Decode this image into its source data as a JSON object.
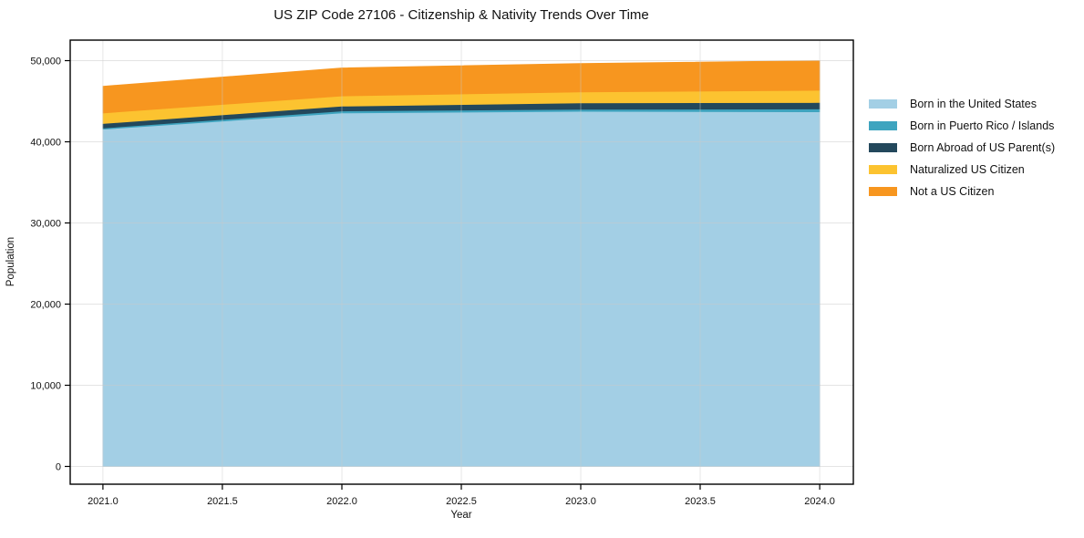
{
  "chart_data": {
    "type": "area",
    "stacked": true,
    "title": "US ZIP Code 27106 - Citizenship & Nativity Trends Over Time",
    "xlabel": "Year",
    "ylabel": "Population",
    "x": [
      2021,
      2022,
      2023,
      2024
    ],
    "series": [
      {
        "name": "Born in the United States",
        "color": "#a3cfe5",
        "values": [
          41550,
          43550,
          43750,
          43700
        ]
      },
      {
        "name": "Born in Puerto Rico / Islands",
        "color": "#3ea4bf",
        "values": [
          150,
          250,
          250,
          350
        ]
      },
      {
        "name": "Born Abroad of US Parent(s)",
        "color": "#23485c",
        "values": [
          550,
          600,
          800,
          800
        ]
      },
      {
        "name": "Naturalized US Citizen",
        "color": "#fcc330",
        "values": [
          1300,
          1250,
          1350,
          1500
        ]
      },
      {
        "name": "Not a US Citizen",
        "color": "#f7961f",
        "values": [
          3300,
          3450,
          3500,
          3650
        ]
      }
    ],
    "totals": [
      46850,
      49100,
      49650,
      50000
    ],
    "x_ticks": {
      "values": [
        2021.0,
        2021.5,
        2022.0,
        2022.5,
        2023.0,
        2023.5,
        2024.0
      ],
      "labels": [
        "2021.0",
        "2021.5",
        "2022.0",
        "2022.5",
        "2023.0",
        "2023.5",
        "2024.0"
      ]
    },
    "y_ticks": {
      "values": [
        0,
        10000,
        20000,
        30000,
        40000,
        50000
      ],
      "labels": [
        "0",
        "10,000",
        "20,000",
        "30,000",
        "40,000",
        "50,000"
      ]
    },
    "xlim": [
      2020.863,
      2024.141
    ],
    "ylim": [
      -2190,
      52530
    ],
    "grid": true,
    "grid_color": "#c9c9c9",
    "spine_color": "#000000",
    "legend_position": "right-outside",
    "background_color": "#ffffff"
  }
}
